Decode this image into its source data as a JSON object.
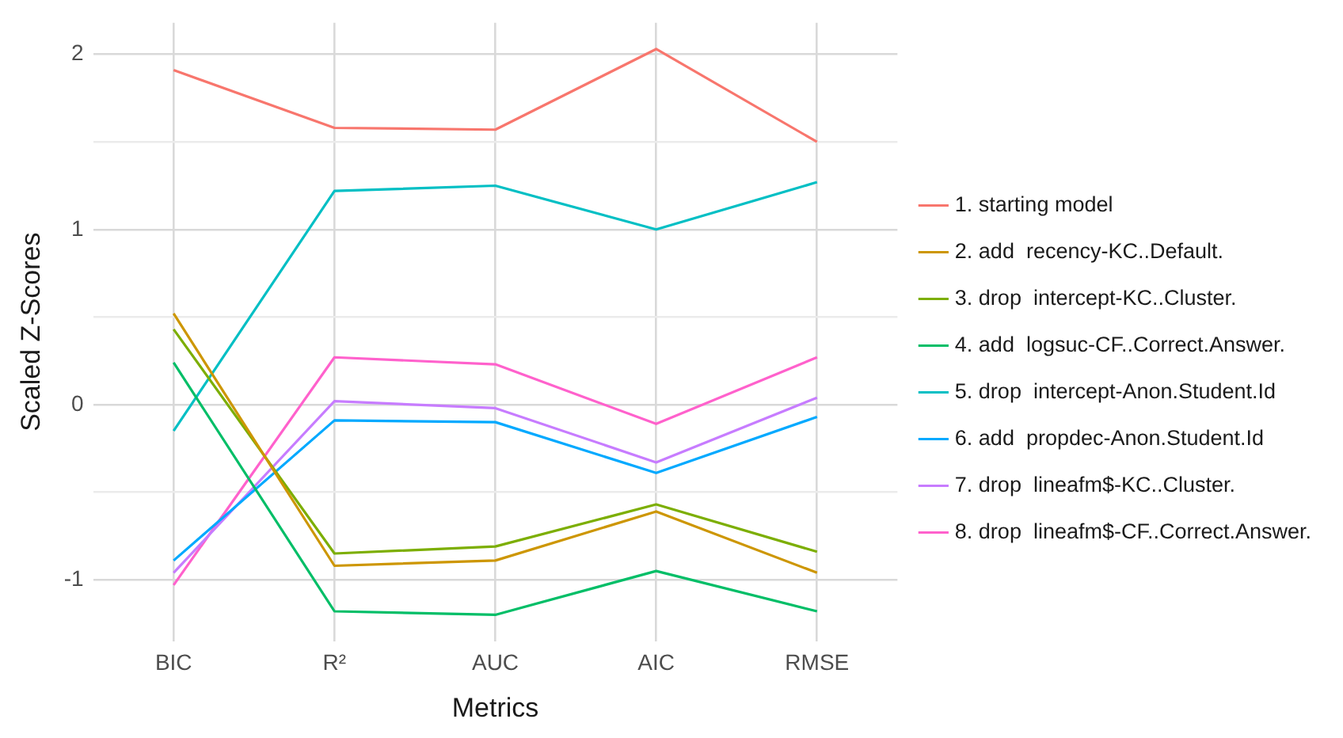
{
  "chart_data": {
    "type": "line",
    "xlabel": "Metrics",
    "ylabel": "Scaled Z-Scores",
    "categories": [
      "BIC",
      "R²",
      "AUC",
      "AIC",
      "RMSE"
    ],
    "ylim": [
      -1.35,
      2.18
    ],
    "yticks": [
      -1,
      {
        "value": -0.5,
        "label": null
      },
      0,
      {
        "value": 0.5,
        "label": null
      },
      1,
      {
        "value": 1.5,
        "label": null
      },
      2
    ],
    "grid": true,
    "legend": "right",
    "marker": "none",
    "line_style": "solid",
    "series": [
      {
        "name": "1. starting model",
        "color": "#f8766d",
        "values": [
          1.91,
          1.58,
          1.57,
          2.03,
          1.5
        ]
      },
      {
        "name": "2. add  recency-KC..Default.",
        "color": "#cd9600",
        "values": [
          0.52,
          -0.92,
          -0.89,
          -0.61,
          -0.96
        ]
      },
      {
        "name": "3. drop  intercept-KC..Cluster.",
        "color": "#7cae00",
        "values": [
          0.43,
          -0.85,
          -0.81,
          -0.57,
          -0.84
        ]
      },
      {
        "name": "4. add  logsuc-CF..Correct.Answer.",
        "color": "#00be67",
        "values": [
          0.24,
          -1.18,
          -1.2,
          -0.95,
          -1.18
        ]
      },
      {
        "name": "5. drop  intercept-Anon.Student.Id",
        "color": "#00bfc4",
        "values": [
          -0.15,
          1.22,
          1.25,
          1.0,
          1.27
        ]
      },
      {
        "name": "6. add  propdec-Anon.Student.Id",
        "color": "#00a9ff",
        "values": [
          -0.89,
          -0.09,
          -0.1,
          -0.39,
          -0.07
        ]
      },
      {
        "name": "7. drop  lineafm$-KC..Cluster.",
        "color": "#c77cff",
        "values": [
          -0.96,
          0.02,
          -0.02,
          -0.33,
          0.04
        ]
      },
      {
        "name": "8. drop  lineafm$-CF..Correct.Answer.",
        "color": "#ff61cc",
        "values": [
          -1.03,
          0.27,
          0.23,
          -0.11,
          0.27
        ]
      }
    ]
  }
}
